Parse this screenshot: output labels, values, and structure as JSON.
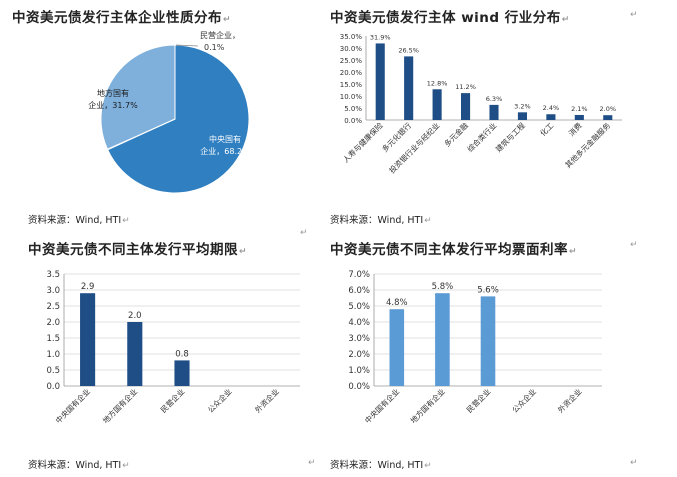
{
  "panels": [
    {
      "title": "中资美元债发行主体企业性质分布",
      "source": "资料来源：Wind, HTI"
    },
    {
      "title": "中资美元债发行主体 wind 行业分布",
      "source": "资料来源：Wind, HTI"
    },
    {
      "title": "中资美元债不同主体发行平均期限",
      "source": "资料来源：Wind, HTI"
    },
    {
      "title": "中资美元债不同主体发行平均票面利率",
      "source": "资料来源：Wind, HTI"
    }
  ],
  "return_mark": "↵",
  "chart_data": [
    {
      "type": "pie",
      "title": "中资美元债发行主体企业性质分布",
      "slices": [
        {
          "label": "中央国有企业",
          "value": 68.2,
          "display": "68.2%",
          "color": "#2f7fc1"
        },
        {
          "label": "民营企业",
          "value": 0.1,
          "display": "0.1%",
          "color": "#4a90d0"
        },
        {
          "label": "地方国有企业",
          "value": 31.7,
          "display": "31.7%",
          "color": "#7fb0dc"
        }
      ]
    },
    {
      "type": "bar",
      "title": "中资美元债发行主体 wind 行业分布",
      "categories": [
        "人寿与健康保险",
        "多元化银行",
        "投资银行业与经纪业",
        "多元金融",
        "综合类行业",
        "建筑与工程",
        "化工",
        "消费",
        "其他多元金融服务"
      ],
      "values": [
        31.9,
        26.5,
        12.8,
        11.2,
        6.3,
        3.2,
        2.4,
        2.1,
        2.0
      ],
      "data_labels": [
        "31.9%",
        "26.5%",
        "12.8%",
        "11.2%",
        "6.3%",
        "3.2%",
        "2.4%",
        "2.1%",
        "2.0%"
      ],
      "ticks": [
        "0.0%",
        "5.0%",
        "10.0%",
        "15.0%",
        "20.0%",
        "25.0%",
        "30.0%",
        "35.0%"
      ],
      "ylim": [
        0,
        35
      ],
      "color": "#1f4e86"
    },
    {
      "type": "bar",
      "title": "中资美元债不同主体发行平均期限",
      "categories": [
        "中央国有企业",
        "地方国有企业",
        "民营企业",
        "公众企业",
        "外资企业"
      ],
      "values": [
        2.9,
        2.0,
        0.8,
        null,
        null
      ],
      "data_labels": [
        "2.9",
        "2.0",
        "0.8",
        "",
        ""
      ],
      "ticks": [
        "0.0",
        "0.5",
        "1.0",
        "1.5",
        "2.0",
        "2.5",
        "3.0",
        "3.5"
      ],
      "ylim": [
        0,
        3.5
      ],
      "grid": true,
      "color": "#1f4e86"
    },
    {
      "type": "bar",
      "title": "中资美元债不同主体发行平均票面利率",
      "categories": [
        "中央国有企业",
        "地方国有企业",
        "民营企业",
        "公众企业",
        "外资企业"
      ],
      "values": [
        4.8,
        5.8,
        5.6,
        null,
        null
      ],
      "data_labels": [
        "4.8%",
        "5.8%",
        "5.6%",
        "",
        ""
      ],
      "ticks": [
        "0.0%",
        "1.0%",
        "2.0%",
        "3.0%",
        "4.0%",
        "5.0%",
        "6.0%",
        "7.0%"
      ],
      "ylim": [
        0,
        7
      ],
      "grid": true,
      "color": "#5b9bd5"
    }
  ]
}
